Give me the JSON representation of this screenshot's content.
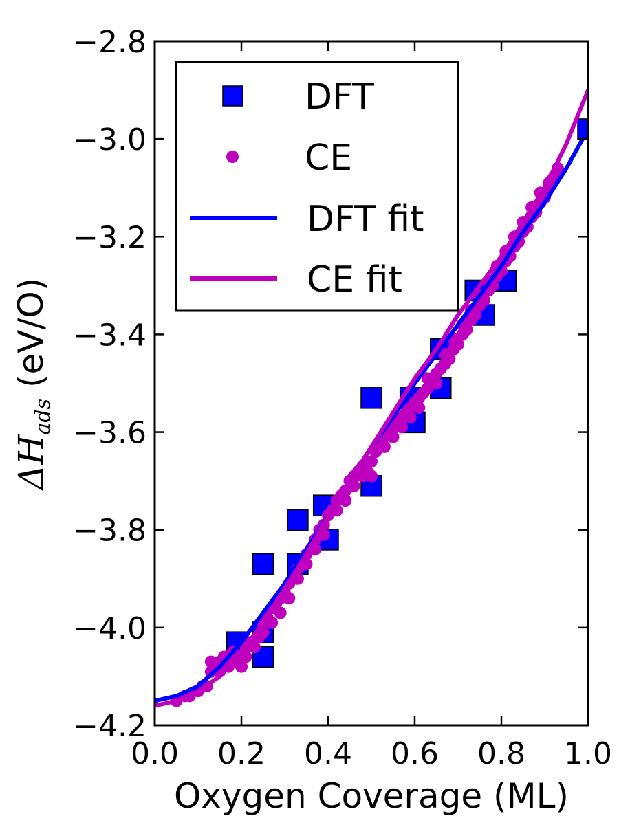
{
  "chart_data": {
    "type": "scatter",
    "xlabel": "Oxygen Coverage (ML)",
    "ylabel": {
      "symbol": "ΔH",
      "subscript": "ads",
      "unit": "(eV/O)"
    },
    "xlim": [
      0.0,
      1.0
    ],
    "ylim": [
      -4.2,
      -2.8
    ],
    "x_ticks": [
      "0.0",
      "0.2",
      "0.4",
      "0.6",
      "0.8",
      "1.0"
    ],
    "y_ticks": [
      "−4.2",
      "−4.0",
      "−3.8",
      "−3.6",
      "−3.4",
      "−3.2",
      "−3.0",
      "−2.8"
    ],
    "grid": false,
    "legend_position": "top-left",
    "legend": [
      "DFT",
      "CE",
      "DFT fit",
      "CE fit"
    ],
    "colors": {
      "dft": "#0000ff",
      "ce": "#bf00bf"
    },
    "series": [
      {
        "name": "DFT",
        "kind": "marker-square",
        "points": [
          [
            0.19,
            -4.03
          ],
          [
            0.25,
            -4.06
          ],
          [
            0.25,
            -4.01
          ],
          [
            0.25,
            -3.87
          ],
          [
            0.33,
            -3.78
          ],
          [
            0.33,
            -3.87
          ],
          [
            0.39,
            -3.75
          ],
          [
            0.4,
            -3.82
          ],
          [
            0.5,
            -3.53
          ],
          [
            0.5,
            -3.71
          ],
          [
            0.59,
            -3.53
          ],
          [
            0.6,
            -3.58
          ],
          [
            0.66,
            -3.43
          ],
          [
            0.66,
            -3.51
          ],
          [
            0.74,
            -3.31
          ],
          [
            0.76,
            -3.36
          ],
          [
            0.81,
            -3.29
          ],
          [
            1.0,
            -2.98
          ]
        ]
      },
      {
        "name": "CE",
        "kind": "marker-dot",
        "points": [
          [
            0.05,
            -4.15
          ],
          [
            0.07,
            -4.14
          ],
          [
            0.08,
            -4.14
          ],
          [
            0.1,
            -4.13
          ],
          [
            0.11,
            -4.12
          ],
          [
            0.12,
            -4.12
          ],
          [
            0.13,
            -4.09
          ],
          [
            0.13,
            -4.07
          ],
          [
            0.14,
            -4.08
          ],
          [
            0.15,
            -4.07
          ],
          [
            0.15,
            -4.09
          ],
          [
            0.16,
            -4.06
          ],
          [
            0.17,
            -4.08
          ],
          [
            0.17,
            -4.06
          ],
          [
            0.18,
            -4.05
          ],
          [
            0.19,
            -4.07
          ],
          [
            0.2,
            -4.08
          ],
          [
            0.21,
            -4.06
          ],
          [
            0.21,
            -4.04
          ],
          [
            0.22,
            -4.03
          ],
          [
            0.23,
            -4.04
          ],
          [
            0.24,
            -4.02
          ],
          [
            0.25,
            -4.01
          ],
          [
            0.25,
            -3.99
          ],
          [
            0.26,
            -3.98
          ],
          [
            0.27,
            -3.99
          ],
          [
            0.27,
            -3.96
          ],
          [
            0.28,
            -3.95
          ],
          [
            0.29,
            -3.97
          ],
          [
            0.29,
            -3.94
          ],
          [
            0.3,
            -3.93
          ],
          [
            0.31,
            -3.91
          ],
          [
            0.31,
            -3.94
          ],
          [
            0.32,
            -3.9
          ],
          [
            0.33,
            -3.88
          ],
          [
            0.33,
            -3.9
          ],
          [
            0.34,
            -3.87
          ],
          [
            0.35,
            -3.85
          ],
          [
            0.35,
            -3.87
          ],
          [
            0.36,
            -3.84
          ],
          [
            0.37,
            -3.82
          ],
          [
            0.37,
            -3.84
          ],
          [
            0.38,
            -3.8
          ],
          [
            0.39,
            -3.79
          ],
          [
            0.39,
            -3.81
          ],
          [
            0.4,
            -3.77
          ],
          [
            0.41,
            -3.76
          ],
          [
            0.42,
            -3.74
          ],
          [
            0.42,
            -3.76
          ],
          [
            0.43,
            -3.73
          ],
          [
            0.44,
            -3.72
          ],
          [
            0.44,
            -3.74
          ],
          [
            0.45,
            -3.7
          ],
          [
            0.46,
            -3.69
          ],
          [
            0.46,
            -3.71
          ],
          [
            0.47,
            -3.68
          ],
          [
            0.48,
            -3.67
          ],
          [
            0.48,
            -3.69
          ],
          [
            0.49,
            -3.68
          ],
          [
            0.5,
            -3.66
          ],
          [
            0.5,
            -3.69
          ],
          [
            0.51,
            -3.64
          ],
          [
            0.52,
            -3.62
          ],
          [
            0.53,
            -3.61
          ],
          [
            0.53,
            -3.63
          ],
          [
            0.54,
            -3.6
          ],
          [
            0.55,
            -3.59
          ],
          [
            0.55,
            -3.61
          ],
          [
            0.56,
            -3.58
          ],
          [
            0.57,
            -3.57
          ],
          [
            0.57,
            -3.59
          ],
          [
            0.58,
            -3.56
          ],
          [
            0.59,
            -3.55
          ],
          [
            0.59,
            -3.57
          ],
          [
            0.6,
            -3.54
          ],
          [
            0.61,
            -3.53
          ],
          [
            0.61,
            -3.55
          ],
          [
            0.62,
            -3.52
          ],
          [
            0.63,
            -3.51
          ],
          [
            0.63,
            -3.49
          ],
          [
            0.64,
            -3.5
          ],
          [
            0.65,
            -3.48
          ],
          [
            0.65,
            -3.5
          ],
          [
            0.66,
            -3.47
          ],
          [
            0.67,
            -3.46
          ],
          [
            0.67,
            -3.44
          ],
          [
            0.68,
            -3.45
          ],
          [
            0.69,
            -3.43
          ],
          [
            0.69,
            -3.41
          ],
          [
            0.7,
            -3.42
          ],
          [
            0.71,
            -3.4
          ],
          [
            0.71,
            -3.38
          ],
          [
            0.72,
            -3.39
          ],
          [
            0.73,
            -3.37
          ],
          [
            0.73,
            -3.35
          ],
          [
            0.74,
            -3.36
          ],
          [
            0.75,
            -3.34
          ],
          [
            0.75,
            -3.32
          ],
          [
            0.76,
            -3.33
          ],
          [
            0.77,
            -3.31
          ],
          [
            0.77,
            -3.29
          ],
          [
            0.78,
            -3.3
          ],
          [
            0.79,
            -3.28
          ],
          [
            0.79,
            -3.26
          ],
          [
            0.8,
            -3.27
          ],
          [
            0.81,
            -3.25
          ],
          [
            0.81,
            -3.23
          ],
          [
            0.82,
            -3.24
          ],
          [
            0.83,
            -3.22
          ],
          [
            0.83,
            -3.2
          ],
          [
            0.84,
            -3.21
          ],
          [
            0.85,
            -3.19
          ],
          [
            0.85,
            -3.17
          ],
          [
            0.86,
            -3.18
          ],
          [
            0.87,
            -3.16
          ],
          [
            0.87,
            -3.14
          ],
          [
            0.88,
            -3.15
          ],
          [
            0.89,
            -3.13
          ],
          [
            0.89,
            -3.11
          ],
          [
            0.9,
            -3.12
          ],
          [
            0.91,
            -3.1
          ],
          [
            0.91,
            -3.09
          ],
          [
            0.92,
            -3.08
          ],
          [
            0.93,
            -3.07
          ],
          [
            0.93,
            -3.06
          ]
        ]
      },
      {
        "name": "DFT fit",
        "kind": "line",
        "points": [
          [
            0.0,
            -4.15
          ],
          [
            0.05,
            -4.14
          ],
          [
            0.1,
            -4.12
          ],
          [
            0.15,
            -4.08
          ],
          [
            0.2,
            -4.03
          ],
          [
            0.25,
            -3.97
          ],
          [
            0.3,
            -3.91
          ],
          [
            0.35,
            -3.84
          ],
          [
            0.4,
            -3.77
          ],
          [
            0.45,
            -3.7
          ],
          [
            0.5,
            -3.63
          ],
          [
            0.55,
            -3.57
          ],
          [
            0.6,
            -3.5
          ],
          [
            0.65,
            -3.44
          ],
          [
            0.7,
            -3.38
          ],
          [
            0.75,
            -3.32
          ],
          [
            0.8,
            -3.26
          ],
          [
            0.85,
            -3.19
          ],
          [
            0.9,
            -3.13
          ],
          [
            0.95,
            -3.06
          ],
          [
            1.0,
            -2.98
          ]
        ]
      },
      {
        "name": "CE fit",
        "kind": "line",
        "points": [
          [
            0.0,
            -4.16
          ],
          [
            0.05,
            -4.15
          ],
          [
            0.1,
            -4.13
          ],
          [
            0.15,
            -4.1
          ],
          [
            0.2,
            -4.05
          ],
          [
            0.25,
            -3.99
          ],
          [
            0.3,
            -3.92
          ],
          [
            0.35,
            -3.85
          ],
          [
            0.4,
            -3.77
          ],
          [
            0.45,
            -3.7
          ],
          [
            0.5,
            -3.63
          ],
          [
            0.55,
            -3.56
          ],
          [
            0.6,
            -3.49
          ],
          [
            0.65,
            -3.43
          ],
          [
            0.7,
            -3.36
          ],
          [
            0.75,
            -3.3
          ],
          [
            0.8,
            -3.24
          ],
          [
            0.85,
            -3.17
          ],
          [
            0.9,
            -3.1
          ],
          [
            0.95,
            -3.01
          ],
          [
            1.0,
            -2.9
          ]
        ]
      }
    ]
  }
}
